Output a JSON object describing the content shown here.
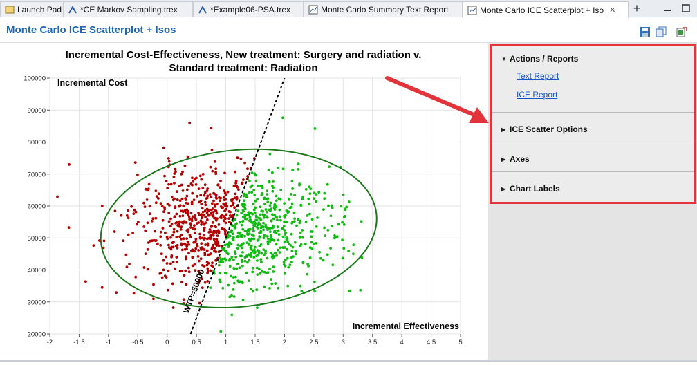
{
  "tabs": [
    {
      "label": "Launch Pad",
      "icon": "launch-pad-icon",
      "active": false
    },
    {
      "label": "*CE Markov Sampling.trex",
      "icon": "tree-file-icon",
      "active": false
    },
    {
      "label": "*Example06-PSA.trex",
      "icon": "tree-file-icon",
      "active": false
    },
    {
      "label": "Monte Carlo Summary Text Report",
      "icon": "report-icon",
      "active": false
    },
    {
      "label": "Monte Carlo ICE Scatterplot + Iso",
      "icon": "chart-icon",
      "active": true
    }
  ],
  "header": {
    "title": "Monte Carlo ICE Scatterplot + Isos",
    "icons": [
      "save-icon",
      "copy-icon",
      "export-icon"
    ]
  },
  "sidepanel": {
    "actions_title": "Actions / Reports",
    "links": [
      "Text Report",
      "ICE Report"
    ],
    "sections": [
      "ICE Scatter Options",
      "Axes",
      "Chart Labels"
    ],
    "highlight_color": "#e2343a"
  },
  "chart_data": {
    "type": "scatter",
    "title": "Incremental Cost-Effectiveness, New treatment: Surgery and radiation v. Standard treatment: Radiation",
    "title_lines": [
      "Incremental Cost-Effectiveness, New treatment: Surgery and radiation v.",
      "Standard treatment: Radiation"
    ],
    "xlabel": "Incremental Effectiveness",
    "ylabel": "Incremental Cost",
    "xlim": [
      -2,
      5
    ],
    "ylim": [
      20000,
      100000
    ],
    "xticks": [
      "-2",
      "-1.5",
      "-1",
      "-0.5",
      "0",
      "0.5",
      "1",
      "1.5",
      "2",
      "2.5",
      "3",
      "3.5",
      "4",
      "4.5",
      "5"
    ],
    "yticks": [
      "20000",
      "30000",
      "40000",
      "50000",
      "60000",
      "70000",
      "80000",
      "90000",
      "100000"
    ],
    "grid": true,
    "wtp_label": "WTP=50000",
    "wtp": 50000,
    "wtp_line": {
      "x": [
        0.4,
        2.0
      ],
      "y": [
        20000,
        100000
      ]
    },
    "ellipse": {
      "center": [
        1.22,
        53000
      ],
      "rx": 2.36,
      "ry": 24500,
      "tilt_deg": -6,
      "color": "#1a7a1a"
    },
    "series": [
      {
        "color": "#b30000",
        "n": 380
      },
      {
        "color": "#11bb11",
        "n": 720
      }
    ],
    "points_summary": {
      "mean_effectiveness": 1.1,
      "mean_cost": 53000,
      "sd_effectiveness": 0.85,
      "sd_cost": 9500
    }
  }
}
